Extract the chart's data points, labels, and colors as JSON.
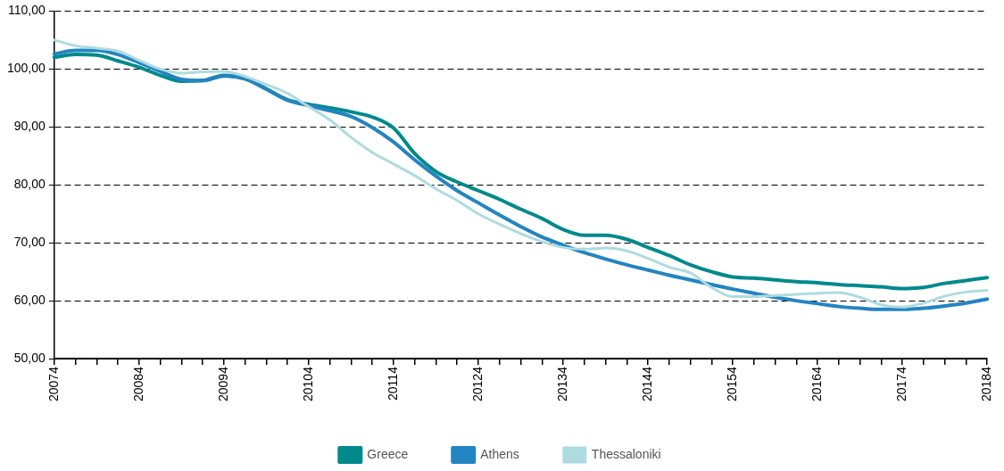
{
  "chart_data": {
    "type": "line",
    "categories": [
      "20074",
      null,
      null,
      null,
      "20084",
      null,
      null,
      null,
      "20094",
      null,
      null,
      null,
      "20104",
      null,
      null,
      null,
      "20114",
      null,
      null,
      null,
      "20124",
      null,
      null,
      null,
      "20134",
      null,
      null,
      null,
      "20144",
      null,
      null,
      null,
      "20154",
      null,
      null,
      null,
      "20164",
      null,
      null,
      null,
      "20174",
      null,
      null,
      null,
      "20184"
    ],
    "series": [
      {
        "name": "Greece",
        "color": "#00898c",
        "values": [
          102.0,
          102.5,
          102.4,
          101.4,
          100.3,
          98.9,
          97.9,
          98.0,
          98.9,
          98.3,
          96.6,
          94.7,
          93.9,
          93.3,
          92.6,
          91.7,
          89.8,
          85.4,
          82.3,
          80.5,
          79.0,
          77.5,
          75.8,
          74.2,
          72.3,
          71.3,
          71.3,
          70.6,
          69.2,
          67.8,
          66.2,
          65.0,
          64.1,
          63.9,
          63.6,
          63.3,
          63.1,
          62.8,
          62.6,
          62.4,
          62.1,
          62.3,
          63.0,
          63.5,
          64.0
        ]
      },
      {
        "name": "Athens",
        "color": "#2384c2",
        "values": [
          102.6,
          103.2,
          103.2,
          102.5,
          101.1,
          99.6,
          98.2,
          98.0,
          98.8,
          98.3,
          96.5,
          94.6,
          93.7,
          92.8,
          91.8,
          89.9,
          87.4,
          84.3,
          81.5,
          79.0,
          76.9,
          74.8,
          72.8,
          71.0,
          69.6,
          68.3,
          67.2,
          66.2,
          65.3,
          64.4,
          63.6,
          62.8,
          62.0,
          61.3,
          60.6,
          60.0,
          59.5,
          59.0,
          58.7,
          58.5,
          58.5,
          58.7,
          59.1,
          59.6,
          60.3
        ]
      },
      {
        "name": "Thessaloniki",
        "color": "#aedbe0",
        "values": [
          105.0,
          104.0,
          103.6,
          103.1,
          101.5,
          100.0,
          99.3,
          99.5,
          99.6,
          98.7,
          97.3,
          95.8,
          93.5,
          91.2,
          88.2,
          85.6,
          83.6,
          81.6,
          79.3,
          77.3,
          75.0,
          73.2,
          71.6,
          70.2,
          69.2,
          68.9,
          69.1,
          68.6,
          67.3,
          65.8,
          64.8,
          62.3,
          60.7,
          60.7,
          60.9,
          61.1,
          61.3,
          61.4,
          60.6,
          59.3,
          58.9,
          59.6,
          60.8,
          61.5,
          61.8
        ]
      }
    ],
    "ylim": [
      50,
      110
    ],
    "yticks": [
      {
        "value": 50,
        "label": "50,00"
      },
      {
        "value": 60,
        "label": "60,00"
      },
      {
        "value": 70,
        "label": "70,00"
      },
      {
        "value": 80,
        "label": "80,00"
      },
      {
        "value": 90,
        "label": "90,00"
      },
      {
        "value": 100,
        "label": "100,00"
      },
      {
        "value": 110,
        "label": "110,00"
      }
    ],
    "grid": "y",
    "legend": "bottom",
    "marker": "none",
    "line_style": "solid"
  }
}
